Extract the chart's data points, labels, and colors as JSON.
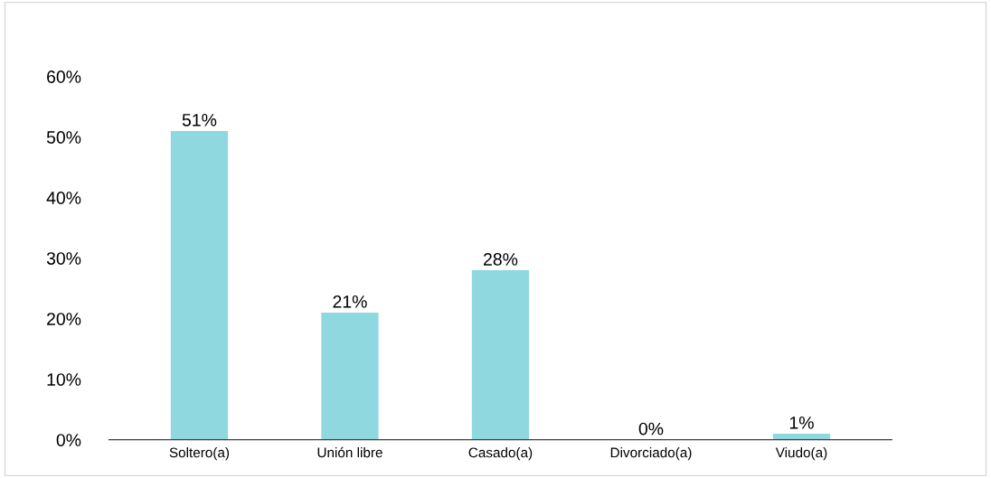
{
  "chart_data": {
    "type": "bar",
    "categories": [
      "Soltero(a)",
      "Unión libre",
      "Casado(a)",
      "Divorciado(a)",
      "Viudo(a)"
    ],
    "values": [
      51,
      21,
      28,
      0,
      1
    ],
    "value_labels": [
      "51%",
      "21%",
      "28%",
      "0%",
      "1%"
    ],
    "color": "#8fd8df",
    "ylim": [
      0,
      60
    ],
    "yticks": [
      {
        "value": 0,
        "label": "0%"
      },
      {
        "value": 10,
        "label": "10%"
      },
      {
        "value": 20,
        "label": "20%"
      },
      {
        "value": 30,
        "label": "30%"
      },
      {
        "value": 40,
        "label": "40%"
      },
      {
        "value": 50,
        "label": "50%"
      },
      {
        "value": 60,
        "label": "60%"
      }
    ],
    "grid": false,
    "legend": false
  }
}
